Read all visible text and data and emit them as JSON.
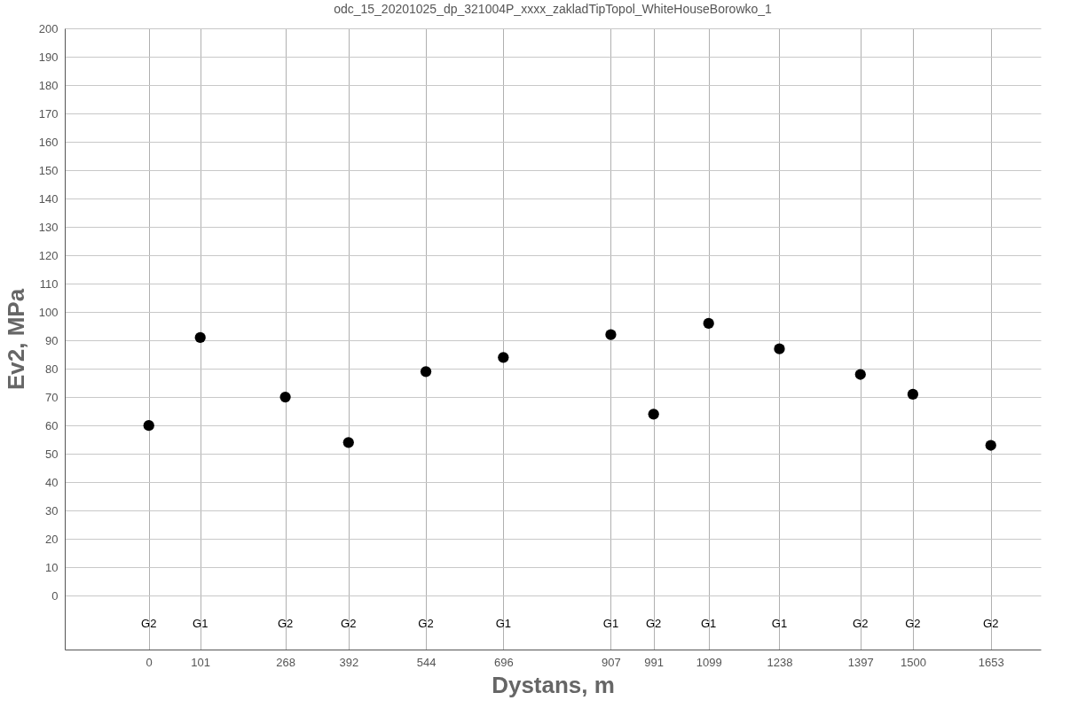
{
  "chart_data": {
    "type": "scatter",
    "title": "odc_15_20201025_dp_321004P_xxxx_zakladTipTopol_WhiteHouseBorowko_1",
    "xlabel": "Dystans, m",
    "ylabel": "Ev2, MPa",
    "x": [
      0,
      101,
      268,
      392,
      544,
      696,
      907,
      991,
      1099,
      1238,
      1397,
      1500,
      1653
    ],
    "series": [
      {
        "color": "#000000",
        "values": [
          60,
          91,
          70,
          54,
          79,
          84,
          92,
          64,
          96,
          87,
          78,
          71,
          53
        ]
      }
    ],
    "xlim": [
      -165,
      1751
    ],
    "ylim": [
      -19,
      200
    ],
    "xticks": [
      0,
      101,
      268,
      392,
      544,
      696,
      907,
      991,
      1099,
      1238,
      1397,
      1500,
      1653
    ],
    "yticks": [
      0,
      10,
      20,
      30,
      40,
      50,
      60,
      70,
      80,
      90,
      100,
      110,
      120,
      130,
      140,
      150,
      160,
      170,
      180,
      190,
      200
    ],
    "grid": true,
    "marker": "circle",
    "annotations": [
      "G2",
      "G1",
      "G2",
      "G2",
      "G2",
      "G1",
      "G1",
      "G2",
      "G1",
      "G1",
      "G2",
      "G2",
      "G2"
    ]
  }
}
